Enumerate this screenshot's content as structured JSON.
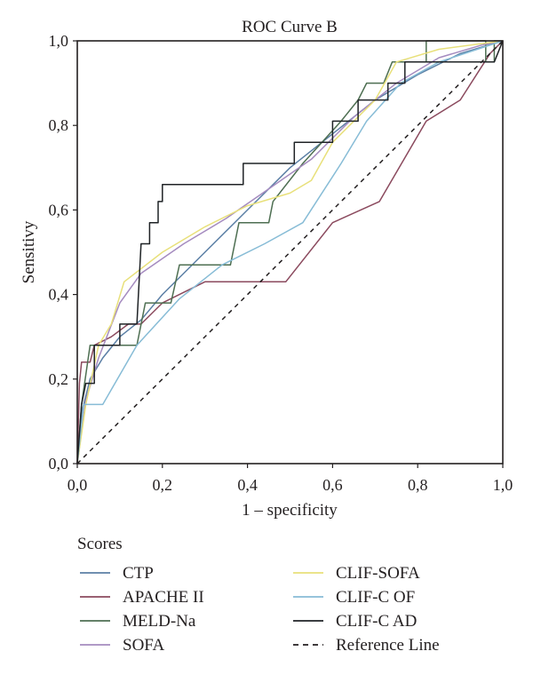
{
  "chart_data": {
    "type": "line",
    "title": "ROC Curve B",
    "xlabel": "1 – specificity",
    "ylabel": "Sensitivy",
    "xlim": [
      0,
      1
    ],
    "ylim": [
      0,
      1
    ],
    "x_ticks": [
      "0,0",
      "0,2",
      "0,4",
      "0,6",
      "0,8",
      "1,0"
    ],
    "y_ticks": [
      "0,0",
      "0,2",
      "0,4",
      "0,6",
      "0,8",
      "1,0"
    ],
    "grid": false,
    "legend": {
      "title": "Scores",
      "placement": "below",
      "columns": 2
    },
    "series": [
      {
        "name": "CTP",
        "color": "#5b7fa5",
        "dash": "solid",
        "points": [
          [
            0,
            0
          ],
          [
            0.01,
            0.12
          ],
          [
            0.03,
            0.2
          ],
          [
            0.06,
            0.25
          ],
          [
            0.1,
            0.3
          ],
          [
            0.15,
            0.34
          ],
          [
            0.2,
            0.4
          ],
          [
            0.3,
            0.5
          ],
          [
            0.4,
            0.6
          ],
          [
            0.5,
            0.7
          ],
          [
            0.6,
            0.78
          ],
          [
            0.7,
            0.86
          ],
          [
            0.8,
            0.92
          ],
          [
            0.9,
            0.97
          ],
          [
            1,
            1
          ]
        ]
      },
      {
        "name": "APACHE II",
        "color": "#8b4a5e",
        "dash": "solid",
        "points": [
          [
            0,
            0
          ],
          [
            0.005,
            0.19
          ],
          [
            0.01,
            0.24
          ],
          [
            0.03,
            0.24
          ],
          [
            0.04,
            0.28
          ],
          [
            0.08,
            0.3
          ],
          [
            0.12,
            0.33
          ],
          [
            0.15,
            0.33
          ],
          [
            0.2,
            0.38
          ],
          [
            0.3,
            0.43
          ],
          [
            0.49,
            0.43
          ],
          [
            0.6,
            0.57
          ],
          [
            0.71,
            0.62
          ],
          [
            0.82,
            0.81
          ],
          [
            0.9,
            0.86
          ],
          [
            0.97,
            0.97
          ],
          [
            1,
            1
          ]
        ]
      },
      {
        "name": "MELD-Na",
        "color": "#4e6f52",
        "dash": "solid",
        "points": [
          [
            0,
            0
          ],
          [
            0.01,
            0.14
          ],
          [
            0.03,
            0.28
          ],
          [
            0.14,
            0.28
          ],
          [
            0.16,
            0.38
          ],
          [
            0.22,
            0.38
          ],
          [
            0.24,
            0.47
          ],
          [
            0.36,
            0.47
          ],
          [
            0.38,
            0.57
          ],
          [
            0.45,
            0.57
          ],
          [
            0.46,
            0.62
          ],
          [
            0.53,
            0.71
          ],
          [
            0.62,
            0.81
          ],
          [
            0.66,
            0.86
          ],
          [
            0.68,
            0.9
          ],
          [
            0.72,
            0.9
          ],
          [
            0.74,
            0.95
          ],
          [
            0.82,
            0.95
          ],
          [
            0.82,
            1
          ],
          [
            0.96,
            1
          ],
          [
            0.96,
            0.95
          ],
          [
            0.98,
            0.95
          ],
          [
            0.98,
            1
          ],
          [
            1,
            1
          ]
        ]
      },
      {
        "name": "SOFA",
        "color": "#a58bbf",
        "dash": "solid",
        "points": [
          [
            0,
            0
          ],
          [
            0.02,
            0.15
          ],
          [
            0.05,
            0.25
          ],
          [
            0.1,
            0.38
          ],
          [
            0.15,
            0.45
          ],
          [
            0.25,
            0.52
          ],
          [
            0.35,
            0.58
          ],
          [
            0.45,
            0.65
          ],
          [
            0.55,
            0.72
          ],
          [
            0.65,
            0.82
          ],
          [
            0.75,
            0.9
          ],
          [
            0.85,
            0.96
          ],
          [
            0.95,
            0.99
          ],
          [
            1,
            1
          ]
        ]
      },
      {
        "name": "CLIF-SOFA",
        "color": "#e8e07a",
        "dash": "solid",
        "points": [
          [
            0,
            0
          ],
          [
            0.02,
            0.14
          ],
          [
            0.05,
            0.28
          ],
          [
            0.08,
            0.33
          ],
          [
            0.11,
            0.43
          ],
          [
            0.2,
            0.5
          ],
          [
            0.3,
            0.56
          ],
          [
            0.4,
            0.61
          ],
          [
            0.5,
            0.64
          ],
          [
            0.55,
            0.67
          ],
          [
            0.6,
            0.76
          ],
          [
            0.7,
            0.86
          ],
          [
            0.75,
            0.95
          ],
          [
            0.85,
            0.98
          ],
          [
            1,
            1
          ]
        ]
      },
      {
        "name": "CLIF-C OF",
        "color": "#87bcd6",
        "dash": "solid",
        "points": [
          [
            0,
            0
          ],
          [
            0.015,
            0.14
          ],
          [
            0.06,
            0.14
          ],
          [
            0.14,
            0.28
          ],
          [
            0.24,
            0.39
          ],
          [
            0.34,
            0.47
          ],
          [
            0.44,
            0.52
          ],
          [
            0.53,
            0.57
          ],
          [
            0.62,
            0.71
          ],
          [
            0.68,
            0.81
          ],
          [
            0.76,
            0.9
          ],
          [
            0.85,
            0.95
          ],
          [
            1,
            1
          ]
        ]
      },
      {
        "name": "CLIF-C AD",
        "color": "#1f2326",
        "dash": "solid",
        "points": [
          [
            0,
            0
          ],
          [
            0.01,
            0.14
          ],
          [
            0.02,
            0.19
          ],
          [
            0.04,
            0.19
          ],
          [
            0.04,
            0.28
          ],
          [
            0.1,
            0.28
          ],
          [
            0.1,
            0.33
          ],
          [
            0.14,
            0.33
          ],
          [
            0.15,
            0.52
          ],
          [
            0.17,
            0.52
          ],
          [
            0.17,
            0.57
          ],
          [
            0.19,
            0.57
          ],
          [
            0.19,
            0.62
          ],
          [
            0.2,
            0.62
          ],
          [
            0.2,
            0.66
          ],
          [
            0.39,
            0.66
          ],
          [
            0.39,
            0.71
          ],
          [
            0.51,
            0.71
          ],
          [
            0.51,
            0.76
          ],
          [
            0.6,
            0.76
          ],
          [
            0.6,
            0.81
          ],
          [
            0.66,
            0.81
          ],
          [
            0.66,
            0.86
          ],
          [
            0.73,
            0.86
          ],
          [
            0.73,
            0.9
          ],
          [
            0.77,
            0.9
          ],
          [
            0.77,
            0.95
          ],
          [
            0.98,
            0.95
          ],
          [
            1,
            1
          ]
        ]
      },
      {
        "name": "Reference Line",
        "color": "#231f20",
        "dash": "dashed",
        "points": [
          [
            0,
            0
          ],
          [
            1,
            1
          ]
        ]
      }
    ]
  }
}
